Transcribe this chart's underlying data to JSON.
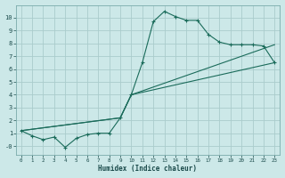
{
  "xlabel": "Humidex (Indice chaleur)",
  "bg_color": "#cce8e8",
  "grid_color": "#aacccc",
  "line_color": "#1a6b5a",
  "x_ticks": [
    0,
    1,
    2,
    3,
    4,
    5,
    6,
    7,
    8,
    9,
    10,
    11,
    12,
    13,
    14,
    15,
    16,
    17,
    18,
    19,
    20,
    21,
    22,
    23
  ],
  "y_ticks": [
    0,
    1,
    2,
    3,
    4,
    5,
    6,
    7,
    8,
    9,
    10
  ],
  "y_tick_labels": [
    "-0",
    "1",
    "2",
    "3",
    "4",
    "5",
    "6",
    "7",
    "8",
    "9",
    "10"
  ],
  "ylim": [
    -0.7,
    11.0
  ],
  "xlim": [
    -0.5,
    23.5
  ],
  "line1_x": [
    0,
    1,
    2,
    3,
    4,
    5,
    6,
    7,
    8,
    9,
    10,
    11,
    12,
    13,
    14,
    15,
    16,
    17,
    18,
    19,
    20,
    21,
    22,
    23
  ],
  "line1_y": [
    1.2,
    0.8,
    0.5,
    0.7,
    -0.1,
    0.6,
    0.9,
    1.0,
    1.0,
    2.2,
    4.0,
    6.5,
    9.7,
    10.5,
    10.1,
    9.8,
    9.8,
    8.7,
    8.1,
    7.9,
    7.9,
    7.9,
    7.8,
    6.5
  ],
  "line2_x": [
    0,
    9,
    10,
    23
  ],
  "line2_y": [
    1.2,
    2.2,
    4.0,
    6.5
  ],
  "line3_x": [
    0,
    9,
    10,
    23
  ],
  "line3_y": [
    1.2,
    2.2,
    4.0,
    7.9
  ]
}
